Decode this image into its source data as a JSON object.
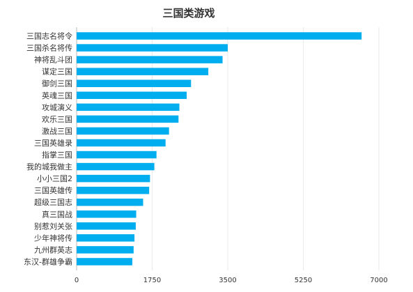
{
  "chart_data": {
    "type": "bar",
    "orientation": "horizontal",
    "title": "三国类游戏",
    "categories": [
      "三国志名将令",
      "三国杀名将传",
      "神将乱斗团",
      "谋定三国",
      "御剑三国",
      "英魂三国",
      "攻城演义",
      "欢乐三国",
      "激战三国",
      "三国英雄录",
      "指掌三国",
      "我的城我做主",
      "小小三国2",
      "三国英雄传",
      "超级三国志",
      "真三国战",
      "别惹刘关张",
      "少年神将传",
      "九州群英志",
      "东汉-群雄争霸"
    ],
    "values": [
      6600,
      3500,
      3380,
      3050,
      2650,
      2550,
      2380,
      2360,
      2140,
      2060,
      1850,
      1800,
      1700,
      1680,
      1540,
      1380,
      1370,
      1340,
      1320,
      1290
    ],
    "xticks": [
      0,
      1750,
      3500,
      5250,
      7000
    ],
    "xtick_labels": [
      "0",
      "1750",
      "3500",
      "5250",
      "7000"
    ],
    "xlim": [
      0,
      7000
    ],
    "grid": true,
    "colors": {
      "bar": "#00aeef"
    }
  }
}
